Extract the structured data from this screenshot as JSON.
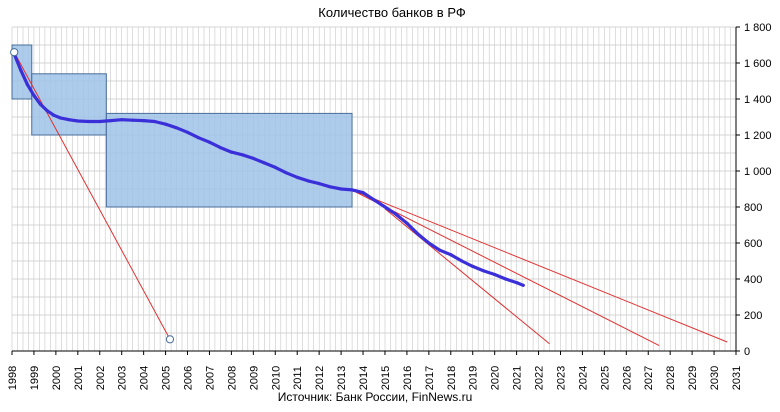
{
  "chart_data": {
    "type": "line",
    "title": "Количество банков  в РФ",
    "source": "Источник: Банк России, FinNews.ru",
    "xlabel": "",
    "ylabel": "",
    "xlim": [
      1998,
      2031
    ],
    "ylim": [
      0,
      1800
    ],
    "x_ticks": [
      "1998",
      "1999",
      "2000",
      "2001",
      "2002",
      "2003",
      "2004",
      "2005",
      "2006",
      "2007",
      "2008",
      "2009",
      "2010",
      "2011",
      "2012",
      "2013",
      "2014",
      "2015",
      "2016",
      "2017",
      "2018",
      "2019",
      "2020",
      "2021",
      "2022",
      "2023",
      "2024",
      "2025",
      "2026",
      "2027",
      "2028",
      "2029",
      "2030",
      "2031"
    ],
    "y_ticks": [
      {
        "value": 0,
        "label": "0"
      },
      {
        "value": 200,
        "label": "200"
      },
      {
        "value": 400,
        "label": "400"
      },
      {
        "value": 600,
        "label": "600"
      },
      {
        "value": 800,
        "label": "800"
      },
      {
        "value": 1000,
        "label": "1 000"
      },
      {
        "value": 1200,
        "label": "1 200"
      },
      {
        "value": 1400,
        "label": "1 400"
      },
      {
        "value": 1600,
        "label": "1 600"
      },
      {
        "value": 1800,
        "label": "1 800"
      }
    ],
    "y_axis_side": "right",
    "grid": true,
    "series": [
      {
        "color": "#3a2fd8",
        "points": [
          [
            1998.1,
            1650
          ],
          [
            1998.4,
            1560
          ],
          [
            1998.7,
            1480
          ],
          [
            1999.0,
            1420
          ],
          [
            1999.3,
            1370
          ],
          [
            1999.6,
            1335
          ],
          [
            1999.9,
            1310
          ],
          [
            2000.2,
            1295
          ],
          [
            2000.6,
            1285
          ],
          [
            2001.0,
            1278
          ],
          [
            2001.5,
            1275
          ],
          [
            2002.0,
            1275
          ],
          [
            2002.5,
            1280
          ],
          [
            2003.0,
            1285
          ],
          [
            2003.5,
            1282
          ],
          [
            2004.0,
            1280
          ],
          [
            2004.5,
            1275
          ],
          [
            2005.0,
            1260
          ],
          [
            2005.5,
            1240
          ],
          [
            2006.0,
            1215
          ],
          [
            2006.5,
            1185
          ],
          [
            2007.0,
            1160
          ],
          [
            2007.5,
            1130
          ],
          [
            2008.0,
            1105
          ],
          [
            2008.5,
            1090
          ],
          [
            2009.0,
            1070
          ],
          [
            2009.5,
            1045
          ],
          [
            2010.0,
            1020
          ],
          [
            2010.5,
            990
          ],
          [
            2011.0,
            965
          ],
          [
            2011.5,
            945
          ],
          [
            2012.0,
            930
          ],
          [
            2012.5,
            912
          ],
          [
            2013.0,
            900
          ],
          [
            2013.5,
            895
          ],
          [
            2014.0,
            880
          ],
          [
            2014.5,
            840
          ],
          [
            2015.0,
            800
          ],
          [
            2015.5,
            760
          ],
          [
            2016.0,
            710
          ],
          [
            2016.5,
            650
          ],
          [
            2017.0,
            600
          ],
          [
            2017.5,
            560
          ],
          [
            2018.0,
            535
          ],
          [
            2018.5,
            500
          ],
          [
            2019.0,
            470
          ],
          [
            2019.5,
            445
          ],
          [
            2020.0,
            425
          ],
          [
            2020.5,
            400
          ],
          [
            2021.0,
            380
          ],
          [
            2021.3,
            365
          ]
        ]
      }
    ],
    "trendlines": [
      {
        "color": "#e03030",
        "points": [
          [
            1998.1,
            1660
          ],
          [
            2005.2,
            65
          ]
        ]
      },
      {
        "color": "#e03030",
        "points": [
          [
            2013.4,
            900
          ],
          [
            2030.6,
            50
          ]
        ]
      },
      {
        "color": "#e03030",
        "points": [
          [
            2013.4,
            900
          ],
          [
            2027.5,
            30
          ]
        ]
      },
      {
        "color": "#e03030",
        "points": [
          [
            2015.0,
            790
          ],
          [
            2022.5,
            40
          ]
        ]
      }
    ],
    "markers": [
      {
        "x": 1998.1,
        "y": 1660
      },
      {
        "x": 2005.2,
        "y": 65
      }
    ],
    "regions": [
      {
        "x0": 1998.0,
        "x1": 1998.9,
        "y0": 1400,
        "y1": 1700
      },
      {
        "x0": 1998.9,
        "x1": 2002.3,
        "y0": 1200,
        "y1": 1540
      },
      {
        "x0": 2002.3,
        "x1": 2013.5,
        "y0": 800,
        "y1": 1320
      }
    ],
    "colors": {
      "series": "#3a2fd8",
      "trend": "#e03030",
      "region_fill": "#9fc2e8",
      "region_stroke": "#4a6e99",
      "grid": "#c8c8c8"
    }
  }
}
